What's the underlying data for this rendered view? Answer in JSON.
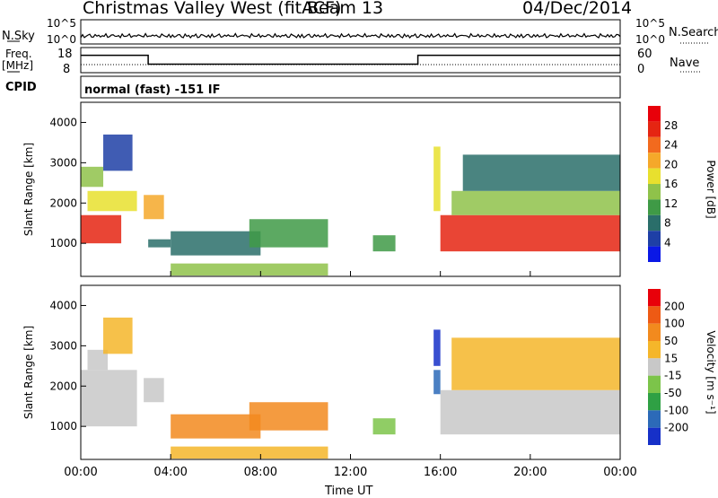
{
  "header": {
    "station": "Christmas Valley West (fitACF)",
    "beam": "Beam 13",
    "date": "04/Dec/2014"
  },
  "strip_panels": {
    "nsky_label": "N.Sky",
    "nsky_ticks": [
      "10^5",
      "10^0"
    ],
    "nsearch_label": "N.Search",
    "nsearch_ticks": [
      "10^5",
      "10^0"
    ],
    "freq_label_line1": "Freq.",
    "freq_label_line2": "[MHz]",
    "freq_ticks": [
      "18",
      "8"
    ],
    "nave_label": "Nave",
    "nave_ticks": [
      "60",
      "0"
    ],
    "cpid_label": "CPID",
    "cpid_text": "normal (fast) -151 IF"
  },
  "x_axis": {
    "label": "Time UT",
    "ticks": [
      "00:00",
      "04:00",
      "08:00",
      "12:00",
      "16:00",
      "20:00",
      "00:00"
    ]
  },
  "power_panel": {
    "ylabel": "Slant Range [km]",
    "yticks": [
      "4000",
      "3000",
      "2000",
      "1000"
    ],
    "colorbar_label": "Power [dB]",
    "colorbar_ticks": [
      "28",
      "24",
      "20",
      "16",
      "12",
      "8",
      "4"
    ],
    "colors": [
      "#0a18e6",
      "#1e3fa6",
      "#2a6e6a",
      "#3f9a46",
      "#8fc24a",
      "#e8e02e",
      "#f5a82a",
      "#f26a1e",
      "#e52512",
      "#e8000a"
    ]
  },
  "velocity_panel": {
    "ylabel": "Slant Range [km]",
    "yticks": [
      "4000",
      "3000",
      "2000",
      "1000"
    ],
    "colorbar_label": "Velocity [m s⁻¹]",
    "colorbar_ticks": [
      "200",
      "100",
      "50",
      "15",
      "-15",
      "-50",
      "-100",
      "-200"
    ],
    "colors": [
      "#1630c8",
      "#2c6ab8",
      "#2fa044",
      "#7cc44a",
      "#c8c8c8",
      "#f5b62a",
      "#f28a1e",
      "#ee5a14",
      "#e8000a"
    ]
  },
  "chart_data": {
    "type": "heatmap",
    "x_range_hours": [
      0,
      24
    ],
    "y_range_km": [
      180,
      4500
    ],
    "freq_steps_mhz": [
      [
        0,
        3,
        16
      ],
      [
        3,
        15,
        10.5
      ],
      [
        15,
        24,
        16
      ]
    ],
    "power_regions": [
      {
        "t0": 0.0,
        "t1": 1.8,
        "r0": 1000,
        "r1": 1700,
        "level": 8
      },
      {
        "t0": 0.3,
        "t1": 2.5,
        "r0": 1800,
        "r1": 2300,
        "level": 5
      },
      {
        "t0": 0.0,
        "t1": 1.0,
        "r0": 2400,
        "r1": 2900,
        "level": 4
      },
      {
        "t0": 1.0,
        "t1": 2.3,
        "r0": 2800,
        "r1": 3700,
        "level": 1
      },
      {
        "t0": 2.8,
        "t1": 3.7,
        "r0": 1600,
        "r1": 2200,
        "level": 6
      },
      {
        "t0": 3.0,
        "t1": 4.0,
        "r0": 900,
        "r1": 1100,
        "level": 2
      },
      {
        "t0": 4.0,
        "t1": 8.0,
        "r0": 700,
        "r1": 1300,
        "level": 2
      },
      {
        "t0": 7.5,
        "t1": 11.0,
        "r0": 900,
        "r1": 1600,
        "level": 3
      },
      {
        "t0": 4.0,
        "t1": 11.0,
        "r0": 200,
        "r1": 500,
        "level": 4
      },
      {
        "t0": 13.0,
        "t1": 14.0,
        "r0": 800,
        "r1": 1200,
        "level": 3
      },
      {
        "t0": 15.7,
        "t1": 16.0,
        "r0": 1800,
        "r1": 3400,
        "level": 5
      },
      {
        "t0": 16.0,
        "t1": 24.0,
        "r0": 800,
        "r1": 1700,
        "level": 8
      },
      {
        "t0": 16.5,
        "t1": 24.0,
        "r0": 1700,
        "r1": 2300,
        "level": 4
      },
      {
        "t0": 17.0,
        "t1": 24.0,
        "r0": 2300,
        "r1": 3200,
        "level": 2
      }
    ],
    "velocity_regions": [
      {
        "t0": 0.0,
        "t1": 2.5,
        "r0": 1000,
        "r1": 2400,
        "level": 4
      },
      {
        "t0": 0.3,
        "t1": 1.2,
        "r0": 2400,
        "r1": 2900,
        "level": 4
      },
      {
        "t0": 1.0,
        "t1": 2.3,
        "r0": 2800,
        "r1": 3700,
        "level": 5
      },
      {
        "t0": 2.8,
        "t1": 3.7,
        "r0": 1600,
        "r1": 2200,
        "level": 4
      },
      {
        "t0": 4.0,
        "t1": 8.0,
        "r0": 700,
        "r1": 1300,
        "level": 6
      },
      {
        "t0": 7.5,
        "t1": 11.0,
        "r0": 900,
        "r1": 1600,
        "level": 6
      },
      {
        "t0": 4.0,
        "t1": 11.0,
        "r0": 200,
        "r1": 500,
        "level": 5
      },
      {
        "t0": 13.0,
        "t1": 14.0,
        "r0": 800,
        "r1": 1200,
        "level": 3
      },
      {
        "t0": 15.7,
        "t1": 16.0,
        "r0": 2500,
        "r1": 3400,
        "level": 0
      },
      {
        "t0": 15.7,
        "t1": 16.0,
        "r0": 1800,
        "r1": 2400,
        "level": 1
      },
      {
        "t0": 16.0,
        "t1": 24.0,
        "r0": 800,
        "r1": 1900,
        "level": 4
      },
      {
        "t0": 16.5,
        "t1": 24.0,
        "r0": 1900,
        "r1": 3200,
        "level": 5
      }
    ]
  }
}
